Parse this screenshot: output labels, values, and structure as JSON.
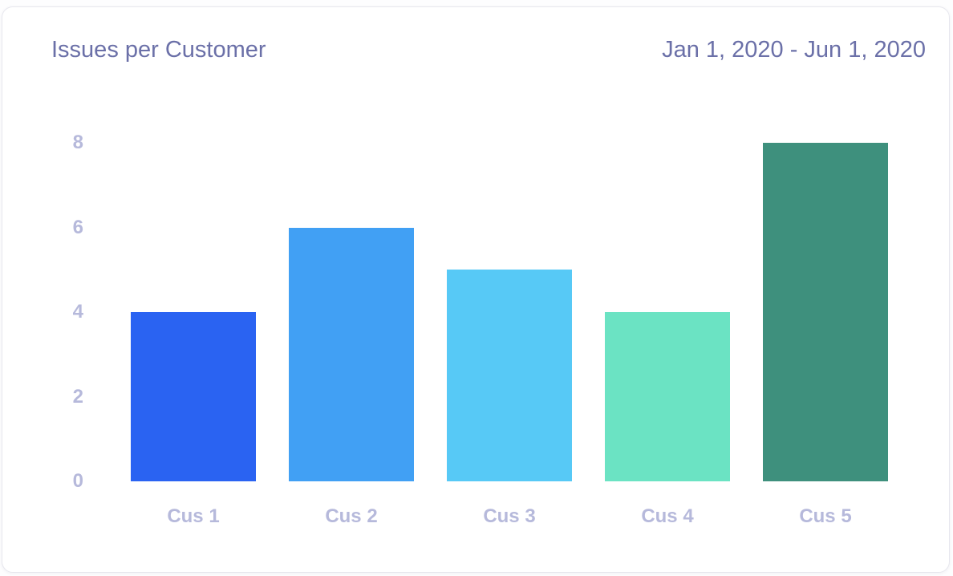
{
  "header": {
    "title": "Issues per Customer",
    "date_range": "Jan 1, 2020 - Jun 1, 2020"
  },
  "colors": {
    "title_text": "#6b70a8",
    "axis_text": "#b6b9db",
    "card_background": "#ffffff",
    "card_border": "#e7e7ee"
  },
  "chart_data": {
    "type": "bar",
    "title": "Issues per Customer",
    "subtitle": "Jan 1, 2020 - Jun 1, 2020",
    "categories": [
      "Cus 1",
      "Cus 2",
      "Cus 3",
      "Cus 4",
      "Cus 5"
    ],
    "values": [
      4,
      6,
      5,
      4,
      8
    ],
    "bar_colors": [
      "#2a63f2",
      "#41a0f4",
      "#57c9f6",
      "#6be3c3",
      "#3e907d"
    ],
    "xlabel": "",
    "ylabel": "",
    "ylim": [
      0,
      8
    ],
    "yticks": [
      0,
      2,
      4,
      6,
      8
    ],
    "grid": false,
    "legend_position": "none"
  }
}
